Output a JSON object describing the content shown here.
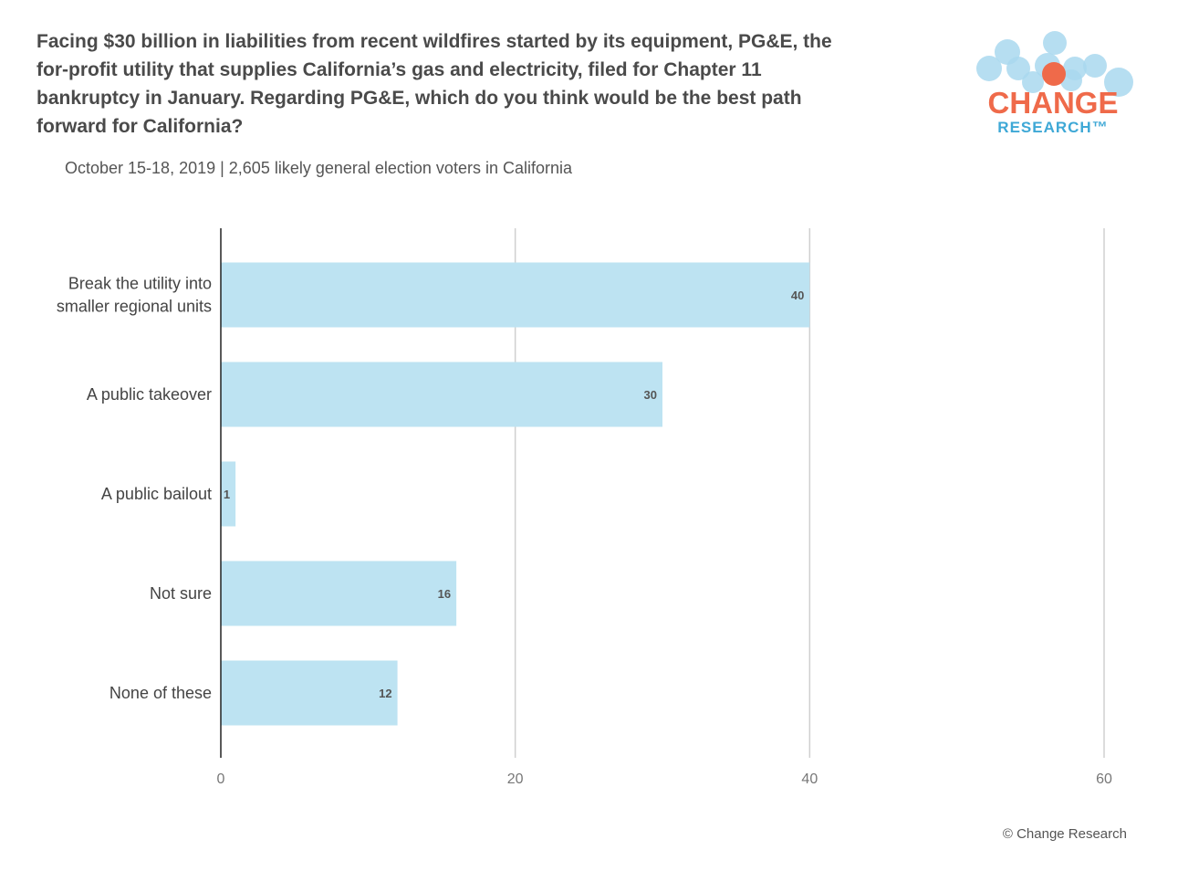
{
  "title": "Facing $30 billion in liabilities from recent wildfires started by its equipment, PG&E, the for-profit utility that supplies California’s gas and electricity, filed for Chapter 11 bankruptcy in January. Regarding PG&E, which do you think would be the best path forward for California?",
  "subtitle": "October 15-18, 2019  | 2,605 likely general election voters in California",
  "logo": {
    "word1": "CHANGE",
    "word2": "RESEARCH™",
    "colors": {
      "orange": "#ef6a4a",
      "blue": "#3ea8d6",
      "bubble": "#a9d8ee"
    }
  },
  "footer": "© Change Research",
  "colors": {
    "bar": "#bde3f2",
    "grid": "#d0d0d0",
    "axis": "#222222"
  },
  "chart_data": {
    "type": "bar",
    "orientation": "horizontal",
    "title": "Facing $30 billion in liabilities from recent wildfires started by its equipment, PG&E, the for-profit utility that supplies California’s gas and electricity, filed for Chapter 11 bankruptcy in January. Regarding PG&E, which do you think would be the best path forward for California?",
    "subtitle": "October 15-18, 2019  | 2,605 likely general election voters in California",
    "categories": [
      [
        "Break the utility into",
        "smaller regional units"
      ],
      [
        "A public takeover"
      ],
      [
        "A public bailout"
      ],
      [
        "Not sure"
      ],
      [
        "None of these"
      ]
    ],
    "values": [
      40,
      30,
      1,
      16,
      12
    ],
    "xlim": [
      0,
      60
    ],
    "xticks": [
      0,
      20,
      40,
      60
    ],
    "grid": true,
    "legend": "none"
  }
}
